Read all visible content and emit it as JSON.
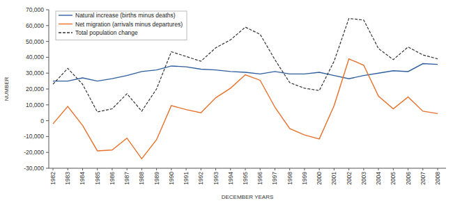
{
  "chart_data": {
    "type": "line",
    "x_label": "DECEMBER YEARS",
    "y_label": "NUMBER",
    "categories": [
      "1982",
      "1983",
      "1984",
      "1985",
      "1986",
      "1987",
      "1988",
      "1989",
      "1990",
      "1991",
      "1992",
      "1993",
      "1994",
      "1995",
      "1996",
      "1997",
      "1998",
      "1999",
      "2000",
      "2001",
      "2002",
      "2003",
      "2004",
      "2005",
      "2006",
      "2007",
      "2008"
    ],
    "series": [
      {
        "name": "Natural increase (births minus deaths)",
        "color": "#2f5f9e",
        "line_style": "solid",
        "values": [
          25000,
          25000,
          27000,
          25000,
          26500,
          28500,
          31000,
          32000,
          34500,
          34000,
          32500,
          32000,
          31000,
          30500,
          29500,
          31000,
          29500,
          29500,
          30500,
          28500,
          26500,
          28500,
          30000,
          31500,
          31000,
          36000,
          35500
        ]
      },
      {
        "name": "Net migration (arrivals minus departures)",
        "color": "#e8702a",
        "line_style": "solid",
        "values": [
          -2000,
          9000,
          -3000,
          -19000,
          -18500,
          -11000,
          -24000,
          -12000,
          9500,
          7000,
          5000,
          14500,
          20500,
          29000,
          25500,
          8500,
          -5000,
          -9000,
          -11500,
          9500,
          39000,
          35000,
          15500,
          7500,
          15000,
          6000,
          4500
        ]
      },
      {
        "name": "Total population change",
        "color": "#333333",
        "line_style": "dashed",
        "values": [
          23000,
          33000,
          23000,
          5500,
          7500,
          17000,
          6000,
          20000,
          43500,
          40500,
          37500,
          46000,
          51000,
          59000,
          54500,
          38500,
          24000,
          20500,
          19000,
          37500,
          64500,
          63500,
          45500,
          38500,
          46500,
          41500,
          39000
        ]
      }
    ],
    "ylim": [
      -30000,
      70000
    ],
    "yticks": [
      {
        "value": -30000,
        "label": "-30,000"
      },
      {
        "value": -20000,
        "label": "-20,000"
      },
      {
        "value": -10000,
        "label": "-10,000"
      },
      0,
      {
        "value": 10000,
        "label": "10,000"
      },
      {
        "value": 20000,
        "label": "20,000"
      },
      {
        "value": 30000,
        "label": "30,000"
      },
      {
        "value": 40000,
        "label": "40,000"
      },
      {
        "value": 50000,
        "label": "50,000"
      },
      {
        "value": 60000,
        "label": "60,000"
      },
      {
        "value": 70000,
        "label": "70,000"
      }
    ],
    "grid": false,
    "legend": "top-left"
  }
}
